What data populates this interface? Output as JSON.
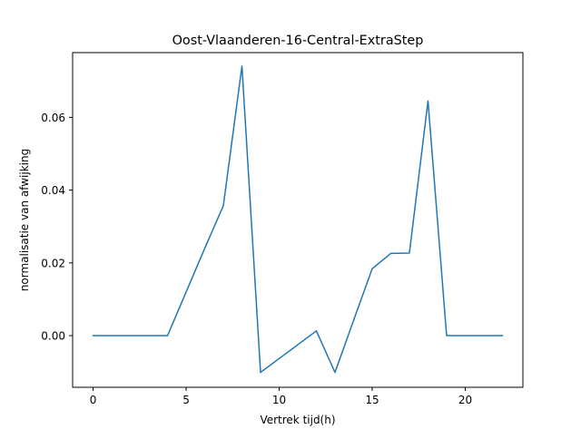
{
  "chart_data": {
    "type": "line",
    "title": "Oost-Vlaanderen-16-Central-ExtraStep",
    "xlabel": "Vertrek tijd(h)",
    "ylabel": "normalisatie van afwijking",
    "xlim": [
      -1.1,
      23.1
    ],
    "ylim": [
      -0.0142,
      0.0778
    ],
    "xticks": [
      0,
      5,
      10,
      15,
      20
    ],
    "xtick_labels": [
      "0",
      "5",
      "10",
      "15",
      "20"
    ],
    "yticks": [
      0.0,
      0.02,
      0.04,
      0.06
    ],
    "ytick_labels": [
      "0.00",
      "0.02",
      "0.04",
      "0.06"
    ],
    "grid": false,
    "series": [
      {
        "color": "#1f77b4",
        "x": [
          0,
          1,
          2,
          3,
          4,
          5,
          6,
          7,
          8,
          9,
          10,
          11,
          12,
          13,
          14,
          15,
          16,
          17,
          18,
          19,
          20,
          21,
          22
        ],
        "y": [
          0.0,
          0.0,
          0.0,
          0.0,
          0.0,
          0.012,
          0.024,
          0.0357,
          0.0741,
          -0.0101,
          -0.0063,
          -0.0025,
          0.0013,
          -0.0101,
          0.0042,
          0.0184,
          0.0226,
          0.0227,
          0.0645,
          0.0,
          0.0,
          0.0,
          0.0
        ]
      }
    ]
  }
}
